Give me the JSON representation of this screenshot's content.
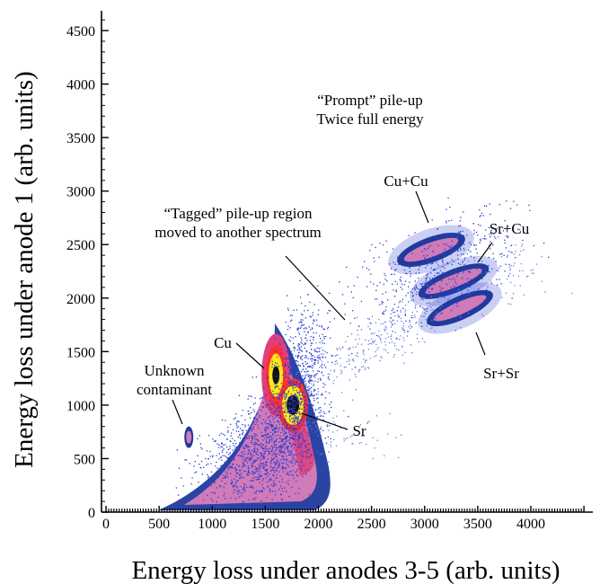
{
  "chart_data": {
    "type": "heatmap",
    "title": "",
    "xlabel": "Energy loss under anodes 3-5 (arb. units)",
    "ylabel": "Energy loss under anode 1 (arb. units)",
    "xlim": [
      0,
      4500
    ],
    "ylim": [
      0,
      4650
    ],
    "x_ticks": [
      "0",
      "500",
      "1000",
      "1500",
      "2000",
      "2500",
      "3000",
      "3500",
      "4000"
    ],
    "y_ticks": [
      "0",
      "500",
      "1000",
      "1500",
      "2000",
      "2500",
      "3000",
      "3500",
      "4000",
      "4500"
    ],
    "grid": false,
    "colors": {
      "sparse": "#2a3ed0",
      "low": "#203a9c",
      "medium": "#d07ab8",
      "high": "#e0407a",
      "higher": "#ff3030",
      "very_high": "#ffe814",
      "peak": "#101018"
    },
    "clusters": [
      {
        "label": "Unknown contaminant",
        "x": 780,
        "y": 700
      },
      {
        "label": "Cu",
        "x": 1600,
        "y": 1280
      },
      {
        "label": "Sr",
        "x": 1760,
        "y": 1000
      },
      {
        "label": "Cu+Cu",
        "x": 3150,
        "y": 2550
      },
      {
        "label": "Sr+Cu",
        "x": 3300,
        "y": 2250
      },
      {
        "label": "Sr+Sr",
        "x": 3500,
        "y": 1950
      }
    ],
    "annotations": [
      {
        "id": "prompt",
        "lines": [
          "“Prompt” pile-up",
          "Twice full energy"
        ]
      },
      {
        "id": "tagged",
        "lines": [
          "“Tagged” pile-up region",
          "moved to another spectrum"
        ]
      },
      {
        "id": "cucu",
        "lines": [
          "Cu+Cu"
        ]
      },
      {
        "id": "srcu",
        "lines": [
          "Sr+Cu"
        ]
      },
      {
        "id": "srsr",
        "lines": [
          "Sr+Sr"
        ]
      },
      {
        "id": "cu",
        "lines": [
          "Cu"
        ]
      },
      {
        "id": "sr",
        "lines": [
          "Sr"
        ]
      },
      {
        "id": "contaminant",
        "lines": [
          "Unknown",
          "contaminant"
        ]
      }
    ]
  }
}
